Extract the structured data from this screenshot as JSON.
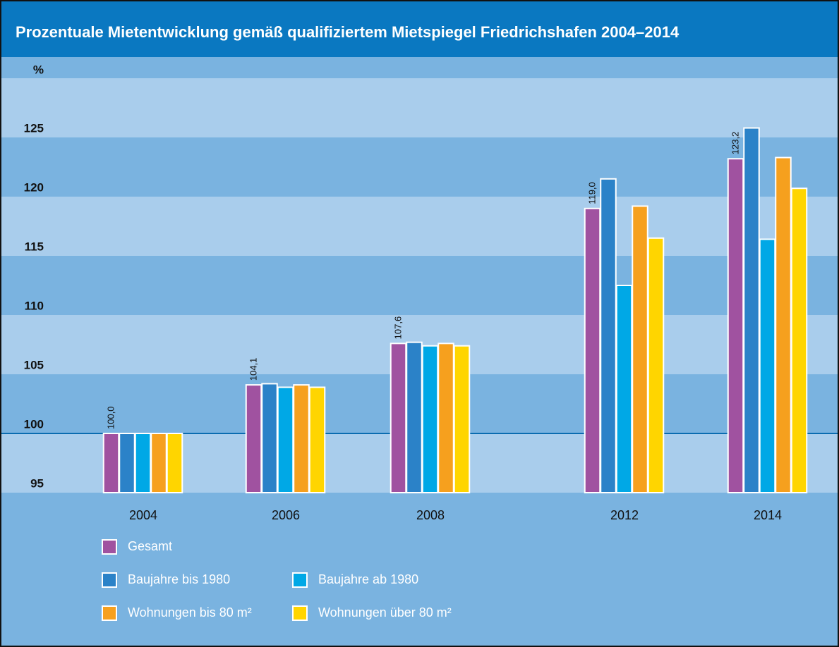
{
  "chart_data": {
    "type": "bar",
    "title": "Prozentuale Mietentwicklung gemäß qualifiziertem Mietspiegel Friedrichshafen 2004–2014",
    "y_label": "%",
    "categories": [
      "2004",
      "2006",
      "2008",
      "2012",
      "2014"
    ],
    "series": [
      {
        "name": "Gesamt",
        "color": "#a052a0",
        "values": [
          100.0,
          104.1,
          107.6,
          119.0,
          123.2
        ],
        "value_labels": [
          "100,0",
          "104,1",
          "107,6",
          "119,0",
          "123,2"
        ]
      },
      {
        "name": "Baujahre bis 1980",
        "color": "#2b82c8",
        "values": [
          100.0,
          104.2,
          107.7,
          121.5,
          125.8
        ]
      },
      {
        "name": "Baujahre ab 1980",
        "color": "#00a8e6",
        "values": [
          100.0,
          103.9,
          107.4,
          112.5,
          116.4
        ]
      },
      {
        "name": "Wohnungen bis 80 m²",
        "color": "#f6a01e",
        "values": [
          100.0,
          104.1,
          107.6,
          119.2,
          123.3
        ]
      },
      {
        "name": "Wohnungen über 80 m²",
        "color": "#ffd500",
        "values": [
          100.0,
          103.9,
          107.4,
          116.5,
          120.7
        ]
      }
    ],
    "ylim": [
      95,
      130
    ],
    "yticks": [
      95,
      100,
      105,
      110,
      115,
      120,
      125
    ],
    "reference_line": 100
  }
}
